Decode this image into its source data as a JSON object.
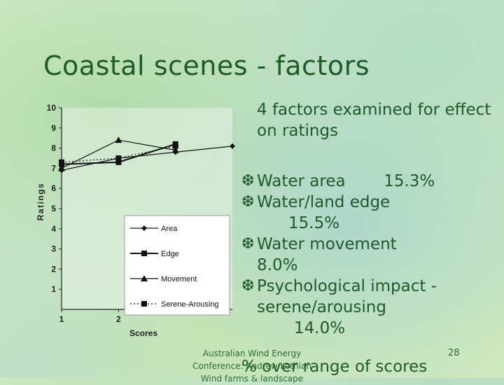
{
  "slide": {
    "title": "Coastal scenes - factors",
    "intro": "4 factors examined for effect on ratings",
    "bullets": [
      {
        "label": "Water area",
        "value": "15.3%"
      },
      {
        "label": "Water/land edge",
        "value": "15.5%"
      },
      {
        "label": "Water movement",
        "value": "8.0%"
      },
      {
        "label": "Psychological impact -",
        "label2": "serene/arousing",
        "value": "14.0%"
      }
    ],
    "last_line": "% over range of scores",
    "footer": {
      "line1": "Australian Wind Energy",
      "line2": "Conference: Andrew Lothian",
      "line3": "Wind farms & landscape",
      "page": "28"
    },
    "colors": {
      "text": "#1f5a2a",
      "bullet_icon": "snowflake-icon"
    }
  },
  "chart_data": {
    "type": "line",
    "xlabel": "Scores",
    "ylabel": "Ratings",
    "ylim": [
      0,
      10
    ],
    "yticks": [
      "1",
      "2",
      "3",
      "4",
      "5",
      "6",
      "7",
      "8",
      "9",
      "10"
    ],
    "x": [
      1,
      2,
      3,
      4
    ],
    "xticks_visible": [
      "1",
      "2"
    ],
    "legend_position": "lower-right",
    "series": [
      {
        "name": "Area",
        "marker": "diamond",
        "style": "solid",
        "values": [
          6.9,
          7.5,
          7.8,
          8.1
        ]
      },
      {
        "name": "Edge",
        "marker": "square",
        "style": "solid",
        "values": [
          7.2,
          7.3,
          8.2,
          null
        ]
      },
      {
        "name": "Movement",
        "marker": "triangle",
        "style": "solid",
        "values": [
          7.0,
          8.4,
          7.9,
          null
        ]
      },
      {
        "name": "Serene-Arousing",
        "marker": "square",
        "style": "dotted",
        "values": [
          7.3,
          7.5,
          8.1,
          null
        ]
      }
    ]
  }
}
